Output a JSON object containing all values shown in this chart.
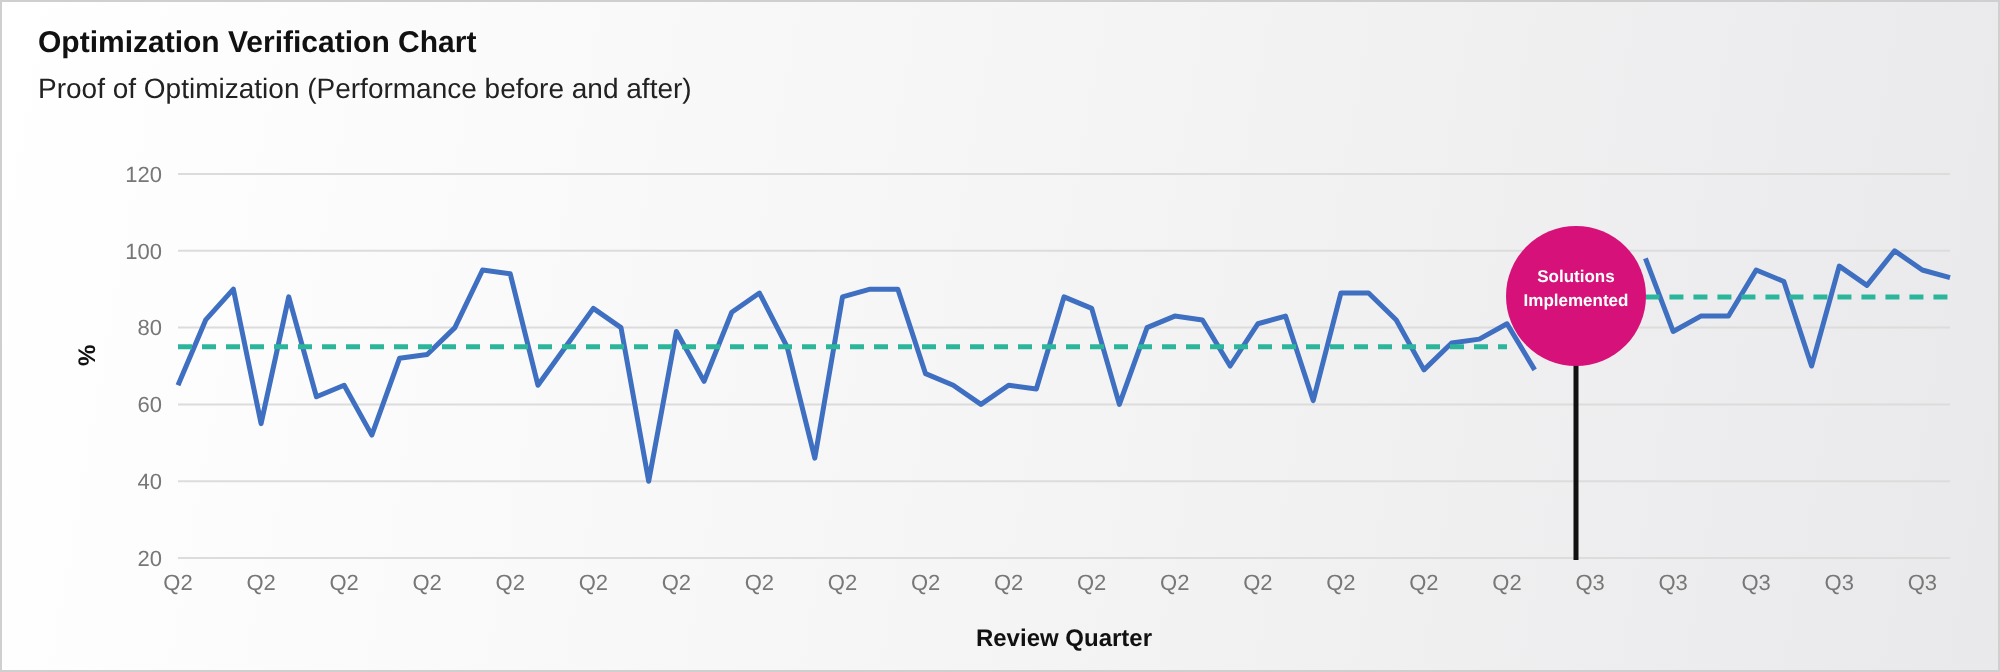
{
  "chart_data": {
    "type": "line",
    "title": "Optimization Verification Chart",
    "subtitle": "Proof of Optimization (Performance before and after)",
    "xlabel": "Review Quarter",
    "ylabel": "%",
    "categories": [
      "Q2",
      null,
      null,
      "Q2",
      null,
      null,
      "Q2",
      null,
      null,
      "Q2",
      null,
      null,
      "Q2",
      null,
      null,
      "Q2",
      null,
      null,
      "Q2",
      null,
      null,
      "Q2",
      null,
      null,
      "Q2",
      null,
      null,
      "Q2",
      null,
      null,
      "Q2",
      null,
      null,
      "Q2",
      null,
      null,
      "Q2",
      null,
      null,
      "Q2",
      null,
      null,
      "Q2",
      null,
      null,
      "Q2",
      null,
      null,
      "Q2",
      null,
      null,
      "Q3",
      null,
      null,
      "Q3",
      null,
      null,
      "Q3",
      null,
      null,
      "Q3",
      null,
      null,
      "Q3",
      null
    ],
    "series": [
      {
        "color": "#3f6fc0",
        "values": [
          65,
          82,
          90,
          55,
          88,
          62,
          65,
          52,
          72,
          73,
          80,
          95,
          94,
          65,
          75,
          85,
          80,
          40,
          79,
          66,
          84,
          89,
          75,
          46,
          88,
          90,
          90,
          68,
          65,
          60,
          65,
          64,
          88,
          85,
          60,
          80,
          83,
          82,
          70,
          81,
          83,
          61,
          89,
          89,
          82,
          69,
          76,
          77,
          81,
          69,
          null,
          null,
          null,
          98,
          79,
          83,
          83,
          95,
          92,
          70,
          96,
          91,
          100,
          95,
          93
        ]
      },
      {
        "color": "#2bb59b",
        "line_style": "dashed",
        "values": [
          75,
          75,
          75,
          75,
          75,
          75,
          75,
          75,
          75,
          75,
          75,
          75,
          75,
          75,
          75,
          75,
          75,
          75,
          75,
          75,
          75,
          75,
          75,
          75,
          75,
          75,
          75,
          75,
          75,
          75,
          75,
          75,
          75,
          75,
          75,
          75,
          75,
          75,
          75,
          75,
          75,
          75,
          75,
          75,
          75,
          75,
          75,
          75,
          75,
          null,
          null,
          null,
          null,
          null,
          null,
          null,
          null,
          null,
          null,
          null,
          null,
          null,
          null,
          null,
          null
        ]
      },
      {
        "color": "#2bb59b",
        "line_style": "dashed",
        "values": [
          null,
          null,
          null,
          null,
          null,
          null,
          null,
          null,
          null,
          null,
          null,
          null,
          null,
          null,
          null,
          null,
          null,
          null,
          null,
          null,
          null,
          null,
          null,
          null,
          null,
          null,
          null,
          null,
          null,
          null,
          null,
          null,
          null,
          null,
          null,
          null,
          null,
          null,
          null,
          null,
          null,
          null,
          null,
          null,
          null,
          null,
          null,
          null,
          null,
          null,
          null,
          null,
          null,
          88,
          88,
          88,
          88,
          88,
          88,
          88,
          88,
          88,
          88,
          88,
          88
        ]
      }
    ],
    "ylim": [
      20,
      120
    ],
    "yticks": [
      20,
      40,
      60,
      80,
      100,
      120
    ],
    "grid": "y",
    "marker": "none",
    "annotations": [
      "Solutions Implemented"
    ]
  }
}
